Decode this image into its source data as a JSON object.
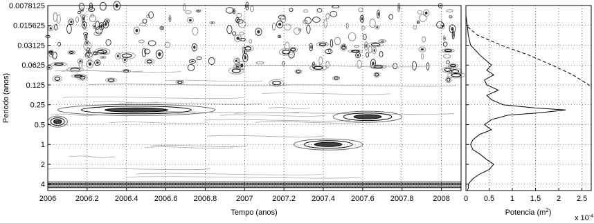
{
  "chart_data": [
    {
      "type": "heatmap",
      "subtype": "wavelet-power-contour",
      "title": "",
      "xlabel": "Tempo (anos)",
      "ylabel": "Periodo (anos)",
      "xlim": [
        2006,
        2008.1
      ],
      "ylim": [
        0.0078125,
        5.0
      ],
      "y_scale": "log2",
      "y_reversed": true,
      "x_ticks": [
        2006,
        2006.2,
        2006.4,
        2006.6,
        2006.8,
        2007,
        2007.2,
        2007.4,
        2007.6,
        2007.8,
        2008
      ],
      "x_tick_labels": [
        "2006",
        "2006.2",
        "2006.4",
        "2006.6",
        "2006.8",
        "2007",
        "2007.2",
        "2007.4",
        "2007.6",
        "2007.8",
        "2008"
      ],
      "y_ticks": [
        0.0078125,
        0.015625,
        0.03125,
        0.0625,
        0.125,
        0.25,
        0.5,
        1,
        2,
        4
      ],
      "y_tick_labels": [
        "0.0078125",
        "0.015625",
        "0.03125",
        "0.0625",
        "0.125",
        "0.25",
        "0.5",
        "1",
        "2",
        "4"
      ],
      "colormap": "grayscale",
      "grid": true,
      "features": [
        {
          "x": [
            2006.05,
            2006.85
          ],
          "period": 0.3
        },
        {
          "x": [
            2007.45,
            2007.8
          ],
          "period": 0.38
        },
        {
          "x": [
            2007.25,
            2007.6
          ],
          "period": 1.0
        },
        {
          "x": [
            2006.0,
            2006.1
          ],
          "period": 0.45
        },
        {
          "x": [
            2006.0,
            2008.1
          ],
          "period": 4.0
        }
      ]
    },
    {
      "type": "line",
      "xlabel": "Potencia (m",
      "xlabel_superscript": "2",
      "xlabel_suffix": ")",
      "x_multiplier": "x 10",
      "x_multiplier_exponent": "-4",
      "xlim": [
        0,
        2.7
      ],
      "x_ticks": [
        0,
        0.5,
        1,
        1.5,
        2,
        2.5
      ],
      "x_tick_labels": [
        "0",
        "0.5",
        "1",
        "1.5",
        "2",
        "2.5"
      ],
      "y_scale": "log2",
      "y_reversed": true,
      "ylim": [
        0.0078125,
        5.0
      ],
      "grid": true,
      "series": [
        {
          "style": "solid",
          "period": [
            0.0078125,
            0.011,
            0.0156,
            0.022,
            0.031,
            0.044,
            0.0625,
            0.075,
            0.088,
            0.105,
            0.125,
            0.15,
            0.18,
            0.21,
            0.25,
            0.28,
            0.3,
            0.33,
            0.36,
            0.42,
            0.5,
            0.6,
            0.7,
            0.85,
            1.0,
            1.2,
            1.4,
            1.7,
            2.0,
            2.4,
            2.8,
            3.3,
            4.0,
            4.6,
            5.0
          ],
          "power": [
            0.0,
            0.0,
            0.03,
            0.05,
            0.1,
            0.3,
            0.55,
            0.45,
            0.6,
            0.4,
            0.45,
            0.7,
            0.45,
            0.55,
            0.8,
            1.5,
            2.15,
            1.6,
            0.9,
            0.55,
            0.4,
            0.55,
            0.3,
            0.15,
            0.1,
            0.15,
            0.3,
            0.45,
            0.6,
            0.5,
            0.3,
            0.15,
            0.05,
            0.05,
            0.03
          ]
        },
        {
          "style": "dashed",
          "period": [
            0.0078125,
            0.0156,
            0.022,
            0.031,
            0.044,
            0.0625,
            0.088,
            0.125,
            0.14
          ],
          "power": [
            0.0,
            0.0,
            0.25,
            0.75,
            1.35,
            1.85,
            2.3,
            2.65,
            2.75
          ]
        }
      ]
    }
  ]
}
